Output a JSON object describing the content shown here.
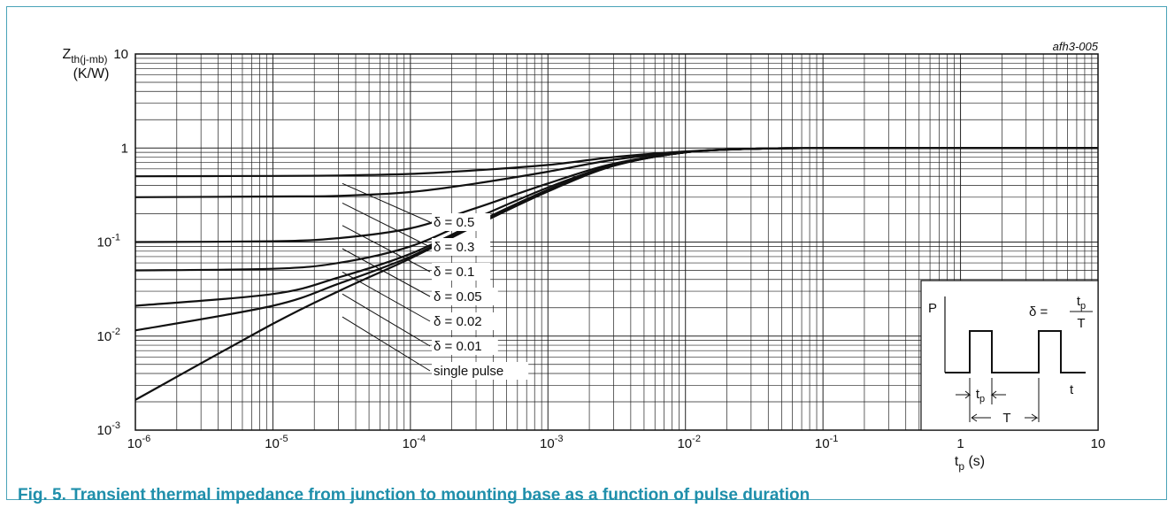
{
  "figure": {
    "caption": "Fig. 5. Transient thermal impedance from junction to mounting base as a function of pulse duration",
    "code": "afh3-005"
  },
  "chart_data": {
    "type": "line",
    "x_scale": "log",
    "y_scale": "log",
    "xlim": [
      1e-06,
      10
    ],
    "ylim": [
      0.001,
      10
    ],
    "grid": true,
    "xlabel": {
      "main": "t",
      "sub": "p",
      "unit": " (s)"
    },
    "ylabel": {
      "main": "Z",
      "sub": "th(j-mb)",
      "unit": "(K/W)"
    },
    "x_ticks": [
      {
        "value": 1e-06,
        "base": "10",
        "exp": "-6"
      },
      {
        "value": 1e-05,
        "base": "10",
        "exp": "-5"
      },
      {
        "value": 0.0001,
        "base": "10",
        "exp": "-4"
      },
      {
        "value": 0.001,
        "base": "10",
        "exp": "-3"
      },
      {
        "value": 0.01,
        "base": "10",
        "exp": "-2"
      },
      {
        "value": 0.1,
        "base": "10",
        "exp": "-1"
      },
      {
        "value": 1,
        "base": "1",
        "exp": ""
      },
      {
        "value": 10,
        "base": "10",
        "exp": ""
      }
    ],
    "y_ticks": [
      {
        "value": 10,
        "base": "10",
        "exp": ""
      },
      {
        "value": 1,
        "base": "1",
        "exp": ""
      },
      {
        "value": 0.1,
        "base": "10",
        "exp": "-1"
      },
      {
        "value": 0.01,
        "base": "10",
        "exp": "-2"
      },
      {
        "value": 0.001,
        "base": "10",
        "exp": "-3"
      }
    ],
    "series": [
      {
        "name": "δ = 0.5",
        "x": [
          1e-06,
          1e-05,
          3e-05,
          0.0001,
          0.0003,
          0.001,
          0.003,
          0.01,
          0.03,
          0.1,
          1,
          10
        ],
        "y": [
          0.5,
          0.505,
          0.51,
          0.53,
          0.58,
          0.66,
          0.8,
          0.92,
          0.98,
          1,
          1,
          1
        ]
      },
      {
        "name": "δ = 0.3",
        "x": [
          1e-06,
          1e-05,
          3e-05,
          0.0001,
          0.0003,
          0.001,
          0.003,
          0.01,
          0.03,
          0.1,
          1,
          10
        ],
        "y": [
          0.3,
          0.305,
          0.31,
          0.34,
          0.42,
          0.56,
          0.75,
          0.91,
          0.98,
          1,
          1,
          1
        ]
      },
      {
        "name": "δ = 0.1",
        "x": [
          1e-06,
          1e-05,
          3e-05,
          0.0001,
          0.0003,
          0.001,
          0.003,
          0.01,
          0.03,
          0.1,
          1,
          10
        ],
        "y": [
          0.1,
          0.102,
          0.11,
          0.14,
          0.23,
          0.42,
          0.68,
          0.9,
          0.98,
          1,
          1,
          1
        ]
      },
      {
        "name": "δ = 0.05",
        "x": [
          1e-06,
          1e-05,
          3e-05,
          0.0001,
          0.0003,
          0.001,
          0.003,
          0.01,
          0.03,
          0.1,
          1,
          10
        ],
        "y": [
          0.05,
          0.052,
          0.06,
          0.09,
          0.18,
          0.38,
          0.66,
          0.9,
          0.98,
          1,
          1,
          1
        ]
      },
      {
        "name": "δ = 0.02",
        "x": [
          1e-06,
          1e-05,
          3e-05,
          0.0001,
          0.0003,
          0.001,
          0.003,
          0.01,
          0.03,
          0.1,
          1,
          10
        ],
        "y": [
          0.021,
          0.028,
          0.042,
          0.075,
          0.16,
          0.36,
          0.65,
          0.9,
          0.98,
          1,
          1,
          1
        ]
      },
      {
        "name": "δ = 0.01",
        "x": [
          1e-06,
          1e-05,
          3e-05,
          0.0001,
          0.0003,
          0.001,
          0.003,
          0.01,
          0.03,
          0.1,
          1,
          10
        ],
        "y": [
          0.0115,
          0.021,
          0.036,
          0.07,
          0.155,
          0.35,
          0.65,
          0.9,
          0.98,
          1,
          1,
          1
        ]
      },
      {
        "name": "single pulse",
        "x": [
          1e-06,
          1e-05,
          3e-05,
          0.0001,
          0.0003,
          0.001,
          0.003,
          0.01,
          0.03,
          0.1,
          1,
          10
        ],
        "y": [
          0.0021,
          0.0135,
          0.03,
          0.067,
          0.15,
          0.345,
          0.645,
          0.9,
          0.98,
          1,
          1,
          1
        ]
      }
    ],
    "legend_labels": [
      {
        "text": "δ = 0.5",
        "anchor_x": 3.2e-05,
        "anchor_y": 0.42
      },
      {
        "text": "δ = 0.3",
        "anchor_x": 3.2e-05,
        "anchor_y": 0.26
      },
      {
        "text": "δ = 0.1",
        "anchor_x": 3.2e-05,
        "anchor_y": 0.15
      },
      {
        "text": "δ = 0.05",
        "anchor_x": 3.2e-05,
        "anchor_y": 0.085
      },
      {
        "text": "δ = 0.02",
        "anchor_x": 3.2e-05,
        "anchor_y": 0.048
      },
      {
        "text": "δ = 0.01",
        "anchor_x": 3.2e-05,
        "anchor_y": 0.028
      },
      {
        "text": "single pulse",
        "anchor_x": 3.2e-05,
        "anchor_y": 0.016
      }
    ],
    "inset": {
      "p_label": "P",
      "t_label": "t",
      "delta_prefix": "δ =",
      "frac_num_main": "t",
      "frac_num_sub": "p",
      "frac_den": "T",
      "tp_main": "t",
      "tp_sub": "p",
      "period_label": "T"
    }
  }
}
